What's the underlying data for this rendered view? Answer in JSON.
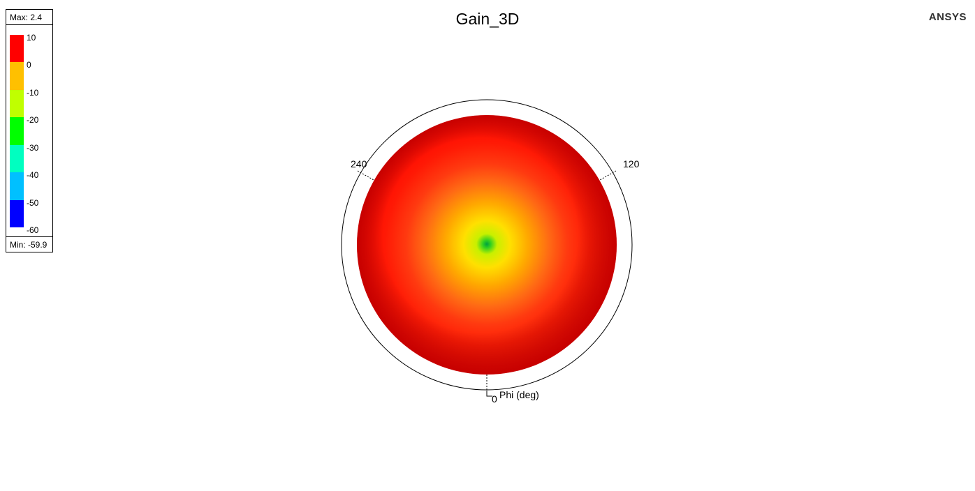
{
  "title": "Gain_3D",
  "brand": "ANSYS",
  "legend": {
    "max_label": "Max: 2.4",
    "min_label": "Min: -59.9",
    "ticks": [
      "10",
      "0",
      "-10",
      "-20",
      "-30",
      "-40",
      "-50",
      "-60"
    ],
    "colors": [
      "#ff0000",
      "#ffc000",
      "#c0ff00",
      "#00ff00",
      "#00ffc0",
      "#00c0ff",
      "#0000ff"
    ]
  },
  "chart_data": {
    "type": "heatmap",
    "title": "Gain_3D",
    "quantity": "Gain",
    "max": 2.4,
    "min": -59.9,
    "colorbar": [
      10,
      0,
      -10,
      -20,
      -30,
      -40,
      -50,
      -60
    ],
    "phi_axis": {
      "label": "Phi (deg)",
      "ticks": [
        0,
        120,
        240
      ],
      "tick_labels": [
        "0",
        "120",
        "240"
      ]
    }
  },
  "axes": {
    "phi_label": "Phi (deg)",
    "tick_120": "120",
    "tick_240": "240",
    "tick_0": "0"
  }
}
